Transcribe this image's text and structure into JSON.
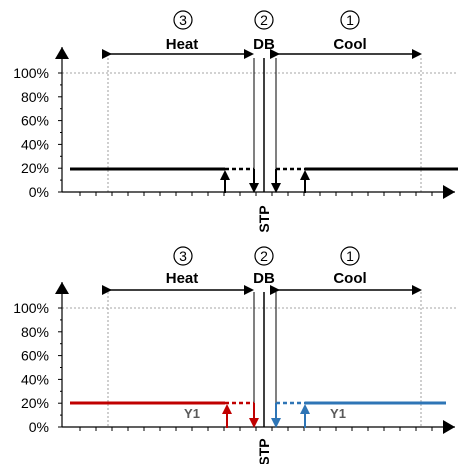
{
  "panels": [
    {
      "zones": {
        "num3": "3",
        "num2": "2",
        "num1": "1",
        "heat": "Heat",
        "db": "DB",
        "cool": "Cool"
      },
      "y_ticks": [
        "100%",
        "80%",
        "60%",
        "40%",
        "20%",
        "0%"
      ],
      "stp_label": "STP",
      "output_label_heat": "",
      "output_label_cool": "",
      "colors": {
        "heat": "#000000",
        "cool": "#000000"
      },
      "level_pct": 20
    },
    {
      "zones": {
        "num3": "3",
        "num2": "2",
        "num1": "1",
        "heat": "Heat",
        "db": "DB",
        "cool": "Cool"
      },
      "y_ticks": [
        "100%",
        "80%",
        "60%",
        "40%",
        "20%",
        "0%"
      ],
      "stp_label": "STP",
      "output_label_heat": "Y1",
      "output_label_cool": "Y1",
      "colors": {
        "heat": "#c00000",
        "cool": "#2e75b6"
      },
      "level_pct": 20
    }
  ]
}
